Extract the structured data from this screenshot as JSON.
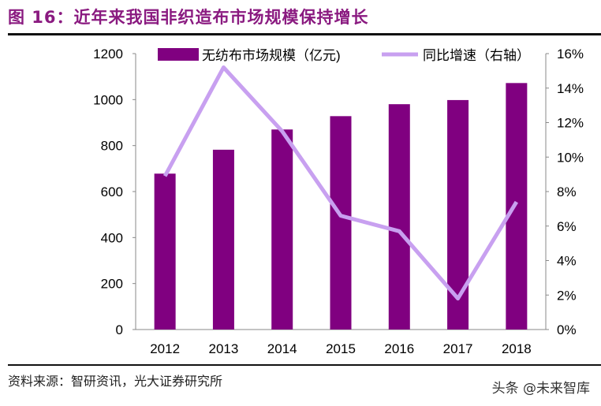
{
  "title": "图 16：近年来我国非织造布市场规模保持增长",
  "source": "资料来源：智研资讯，光大证券研究所",
  "watermark": "头条 @未来智库",
  "chart_data": {
    "type": "bar+line",
    "categories": [
      "2012",
      "2013",
      "2014",
      "2015",
      "2016",
      "2017",
      "2018"
    ],
    "series": [
      {
        "name": "无纺布市场规模（亿元)",
        "type": "bar",
        "axis": "left",
        "color": "#800080",
        "values": [
          678,
          782,
          870,
          928,
          980,
          998,
          1072
        ]
      },
      {
        "name": "同比增速（右轴）",
        "type": "line",
        "axis": "right",
        "color": "#c8a0f0",
        "values": [
          8.9,
          15.2,
          11.5,
          6.6,
          5.7,
          1.8,
          7.4
        ]
      }
    ],
    "left_axis": {
      "ylim": [
        0,
        1200
      ],
      "ticks": [
        "0",
        "200",
        "400",
        "600",
        "800",
        "1000",
        "1200"
      ]
    },
    "right_axis": {
      "ylim": [
        0,
        16
      ],
      "ticks": [
        "0%",
        "2%",
        "4%",
        "6%",
        "8%",
        "10%",
        "12%",
        "14%",
        "16%"
      ]
    },
    "grid": false,
    "legend": "top"
  }
}
